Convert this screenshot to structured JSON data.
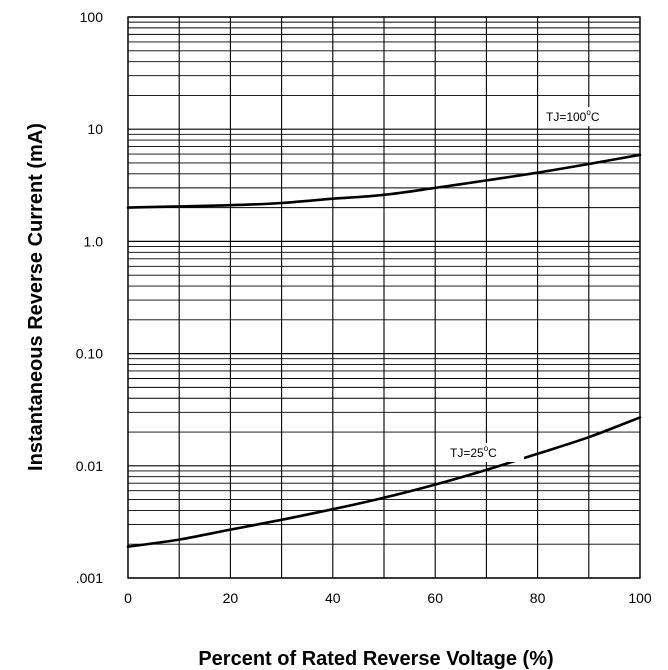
{
  "chart_data": {
    "type": "line",
    "title": "",
    "xlabel": "Percent of Rated Reverse Voltage (%)",
    "ylabel": "Instantaneous Reverse Current (mA)",
    "x_scale": "linear",
    "y_scale": "log",
    "xlim": [
      0,
      100
    ],
    "ylim": [
      0.001,
      100
    ],
    "grid": true,
    "x_ticks": [
      0,
      20,
      40,
      60,
      80,
      100
    ],
    "x_tick_labels": [
      "0",
      "20",
      "40",
      "60",
      "80",
      "100"
    ],
    "y_ticks": [
      0.001,
      0.01,
      0.1,
      1,
      10,
      100
    ],
    "y_tick_labels": [
      ".001",
      "0.01",
      "0.10",
      "1.0",
      "10",
      "100"
    ],
    "series": [
      {
        "label_main": "TJ=100",
        "label_sup": "o",
        "label_unit": "C",
        "color": "#000000",
        "x": [
          0,
          10,
          20,
          30,
          40,
          50,
          60,
          70,
          80,
          90,
          100
        ],
        "y": [
          2.0,
          2.05,
          2.1,
          2.2,
          2.4,
          2.6,
          3.0,
          3.5,
          4.1,
          4.9,
          5.9
        ]
      },
      {
        "label_main": "TJ=25",
        "label_sup": "o",
        "label_unit": "C",
        "color": "#000000",
        "x": [
          0,
          10,
          20,
          30,
          40,
          50,
          60,
          70,
          80,
          90,
          100
        ],
        "y": [
          0.0019,
          0.0022,
          0.0027,
          0.0033,
          0.0041,
          0.0052,
          0.0068,
          0.0092,
          0.0128,
          0.018,
          0.027
        ]
      }
    ]
  }
}
